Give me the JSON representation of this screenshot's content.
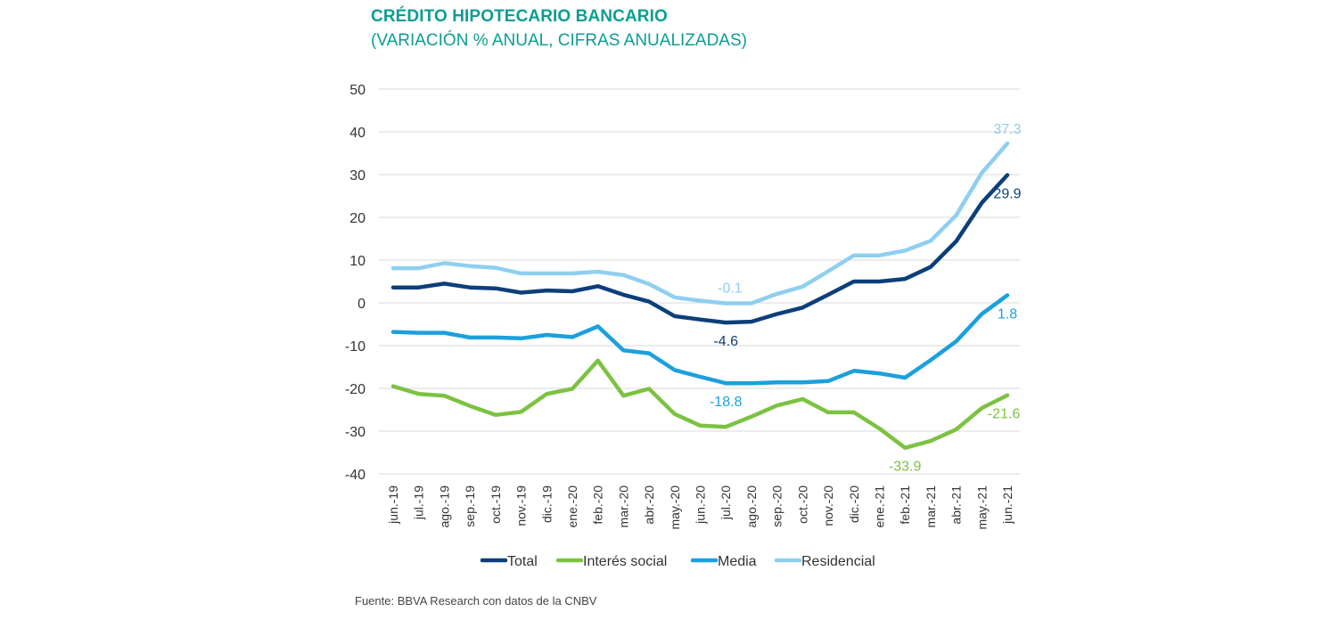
{
  "chart_data": {
    "type": "line",
    "title": "CRÉDITO HIPOTECARIO BANCARIO",
    "subtitle": "(VARIACIÓN % ANUAL, CIFRAS ANUALIZADAS)",
    "xlabel": "",
    "ylabel": "",
    "ylim": [
      -40,
      50
    ],
    "yticks": [
      50,
      40,
      30,
      20,
      10,
      0,
      -10,
      -20,
      -30,
      -40
    ],
    "grid": true,
    "legend_position": "bottom",
    "categories": [
      "jun.-19",
      "jul.-19",
      "ago.-19",
      "sep.-19",
      "oct.-19",
      "nov.-19",
      "dic.-19",
      "ene.-20",
      "feb.-20",
      "mar.-20",
      "abr.-20",
      "may.-20",
      "jun.-20",
      "jul.-20",
      "ago.-20",
      "sep.-20",
      "oct.-20",
      "nov.-20",
      "dic.-20",
      "ene.-21",
      "feb.-21",
      "mar.-21",
      "abr.-21",
      "may.-21",
      "jun.-21"
    ],
    "series": [
      {
        "name": "Total",
        "color": "#0c3f7a",
        "values": [
          3.6,
          3.6,
          4.5,
          3.6,
          3.4,
          2.4,
          2.9,
          2.7,
          3.9,
          1.9,
          0.3,
          -3.1,
          -3.9,
          -4.6,
          -4.4,
          -2.6,
          -1.1,
          1.9,
          5.0,
          5.0,
          5.6,
          8.4,
          14.4,
          23.4,
          29.9
        ],
        "labels": [
          {
            "index": 13,
            "text": "-4.6"
          },
          {
            "index": 24,
            "text": "29.9"
          }
        ]
      },
      {
        "name": "Interés social",
        "color": "#7cc242",
        "values": [
          -19.5,
          -21.3,
          -21.7,
          -24.1,
          -26.2,
          -25.5,
          -21.3,
          -20.1,
          -13.5,
          -21.7,
          -20.1,
          -26.0,
          -28.7,
          -29.0,
          -26.6,
          -24.0,
          -22.5,
          -25.6,
          -25.6,
          -29.4,
          -33.9,
          -32.3,
          -29.6,
          -24.6,
          -21.6
        ],
        "labels": [
          {
            "index": 20,
            "text": "-33.9"
          },
          {
            "index": 24,
            "text": "-21.6"
          }
        ]
      },
      {
        "name": "Media",
        "color": "#1ba0dc",
        "values": [
          -6.8,
          -7.0,
          -7.0,
          -8.1,
          -8.1,
          -8.3,
          -7.5,
          -8.0,
          -5.5,
          -11.1,
          -11.8,
          -15.7,
          -17.3,
          -18.8,
          -18.8,
          -18.6,
          -18.6,
          -18.3,
          -15.9,
          -16.5,
          -17.5,
          -13.4,
          -9.0,
          -2.6,
          1.8
        ],
        "labels": [
          {
            "index": 13,
            "text": "-18.8"
          },
          {
            "index": 24,
            "text": "1.8"
          }
        ]
      },
      {
        "name": "Residencial",
        "color": "#8ecff0",
        "values": [
          8.1,
          8.1,
          9.3,
          8.6,
          8.2,
          6.9,
          6.9,
          6.9,
          7.3,
          6.5,
          4.4,
          1.3,
          0.5,
          -0.1,
          -0.1,
          2.1,
          3.8,
          7.4,
          11.1,
          11.1,
          12.2,
          14.5,
          20.5,
          30.4,
          37.3
        ],
        "labels": [
          {
            "index": 14,
            "text": "-0.1"
          },
          {
            "index": 24,
            "text": "37.3"
          }
        ]
      }
    ]
  },
  "source": "Fuente: BBVA Research con datos de la CNBV"
}
